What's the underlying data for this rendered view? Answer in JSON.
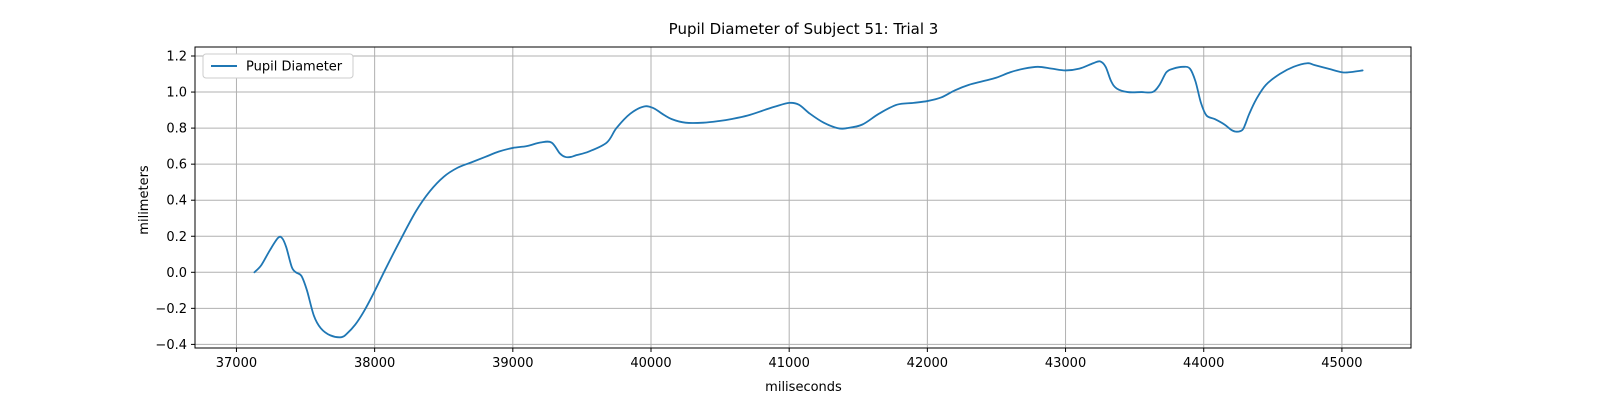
{
  "chart_data": {
    "type": "line",
    "title": "Pupil Diameter of Subject 51: Trial 3",
    "xlabel": "miliseconds",
    "ylabel": "milimeters",
    "xlim": [
      36700,
      45500
    ],
    "ylim": [
      -0.42,
      1.25
    ],
    "xticks": [
      37000,
      38000,
      39000,
      40000,
      41000,
      42000,
      43000,
      44000,
      45000
    ],
    "yticks": [
      -0.4,
      -0.2,
      0.0,
      0.2,
      0.4,
      0.6,
      0.8,
      1.0,
      1.2
    ],
    "grid": true,
    "legend_position": "upper-left",
    "series": [
      {
        "name": "Pupil Diameter",
        "color": "#1f77b4",
        "x": [
          37130,
          37180,
          37240,
          37300,
          37330,
          37360,
          37400,
          37430,
          37470,
          37510,
          37560,
          37610,
          37680,
          37760,
          37800,
          37860,
          37920,
          37990,
          38080,
          38180,
          38300,
          38400,
          38500,
          38600,
          38700,
          38800,
          38900,
          39000,
          39100,
          39200,
          39280,
          39340,
          39380,
          39420,
          39460,
          39550,
          39680,
          39750,
          39850,
          39950,
          40020,
          40080,
          40150,
          40250,
          40380,
          40500,
          40580,
          40700,
          40820,
          40900,
          41000,
          41070,
          41150,
          41250,
          41350,
          41420,
          41530,
          41650,
          41780,
          41900,
          42000,
          42100,
          42200,
          42300,
          42400,
          42500,
          42600,
          42700,
          42800,
          42900,
          43000,
          43100,
          43200,
          43250,
          43290,
          43330,
          43370,
          43450,
          43550,
          43630,
          43680,
          43730,
          43780,
          43850,
          43900,
          43940,
          43980,
          44020,
          44080,
          44150,
          44200,
          44240,
          44280,
          44300,
          44330,
          44380,
          44450,
          44550,
          44650,
          44750,
          44800,
          44900,
          45000,
          45050,
          45150
        ],
        "y": [
          0.0,
          0.04,
          0.12,
          0.19,
          0.19,
          0.14,
          0.03,
          0.0,
          -0.02,
          -0.1,
          -0.24,
          -0.31,
          -0.35,
          -0.36,
          -0.34,
          -0.29,
          -0.22,
          -0.12,
          0.02,
          0.17,
          0.34,
          0.45,
          0.53,
          0.58,
          0.61,
          0.64,
          0.67,
          0.69,
          0.7,
          0.72,
          0.72,
          0.66,
          0.64,
          0.64,
          0.65,
          0.67,
          0.72,
          0.8,
          0.88,
          0.92,
          0.91,
          0.88,
          0.85,
          0.83,
          0.83,
          0.84,
          0.85,
          0.87,
          0.9,
          0.92,
          0.94,
          0.93,
          0.88,
          0.83,
          0.8,
          0.8,
          0.82,
          0.88,
          0.93,
          0.94,
          0.95,
          0.97,
          1.01,
          1.04,
          1.06,
          1.08,
          1.11,
          1.13,
          1.14,
          1.13,
          1.12,
          1.13,
          1.16,
          1.17,
          1.14,
          1.06,
          1.02,
          1.0,
          1.0,
          1.0,
          1.04,
          1.11,
          1.13,
          1.14,
          1.13,
          1.06,
          0.94,
          0.87,
          0.85,
          0.82,
          0.79,
          0.78,
          0.79,
          0.82,
          0.88,
          0.96,
          1.04,
          1.1,
          1.14,
          1.16,
          1.15,
          1.13,
          1.11,
          1.11,
          1.12
        ]
      }
    ]
  }
}
